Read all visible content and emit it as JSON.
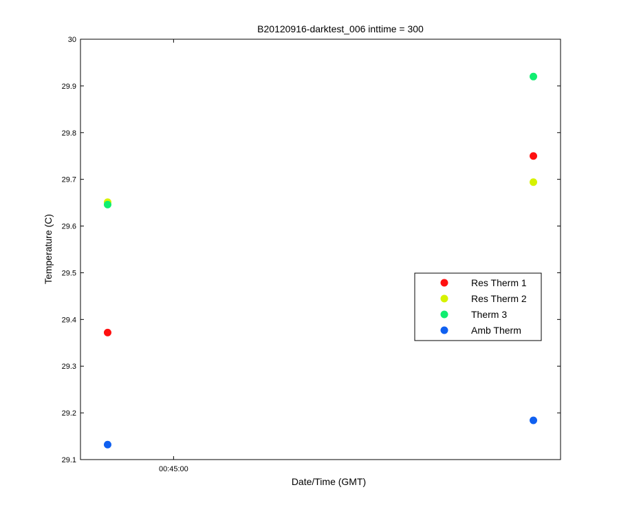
{
  "chart_data": {
    "type": "scatter",
    "title": "B20120916-darktest_006 inttime = 300",
    "xlabel": "Date/Time (GMT)",
    "ylabel": "Temperature (C)",
    "xlim": [
      "00:43:24",
      "00:51:39"
    ],
    "ylim": [
      29.1,
      30.0
    ],
    "x_ticks": [
      "00:45:00"
    ],
    "y_ticks": [
      "29.1",
      "29.2",
      "29.3",
      "29.4",
      "29.5",
      "29.6",
      "29.7",
      "29.8",
      "29.9",
      "30"
    ],
    "grid": false,
    "legend_position": "center-right",
    "series": [
      {
        "name": "Res Therm 1",
        "color": "#ff1010",
        "x": [
          "00:43:52",
          "00:51:11"
        ],
        "y": [
          29.372,
          29.75
        ]
      },
      {
        "name": "Res Therm 2",
        "color": "#d6f200",
        "x": [
          "00:43:52",
          "00:51:11"
        ],
        "y": [
          29.651,
          29.694
        ]
      },
      {
        "name": "Therm 3",
        "color": "#10ee70",
        "x": [
          "00:43:52",
          "00:51:11"
        ],
        "y": [
          29.646,
          29.92
        ]
      },
      {
        "name": "Amb Therm",
        "color": "#1060f0",
        "x": [
          "00:43:52",
          "00:51:11"
        ],
        "y": [
          29.132,
          29.184
        ]
      }
    ]
  }
}
